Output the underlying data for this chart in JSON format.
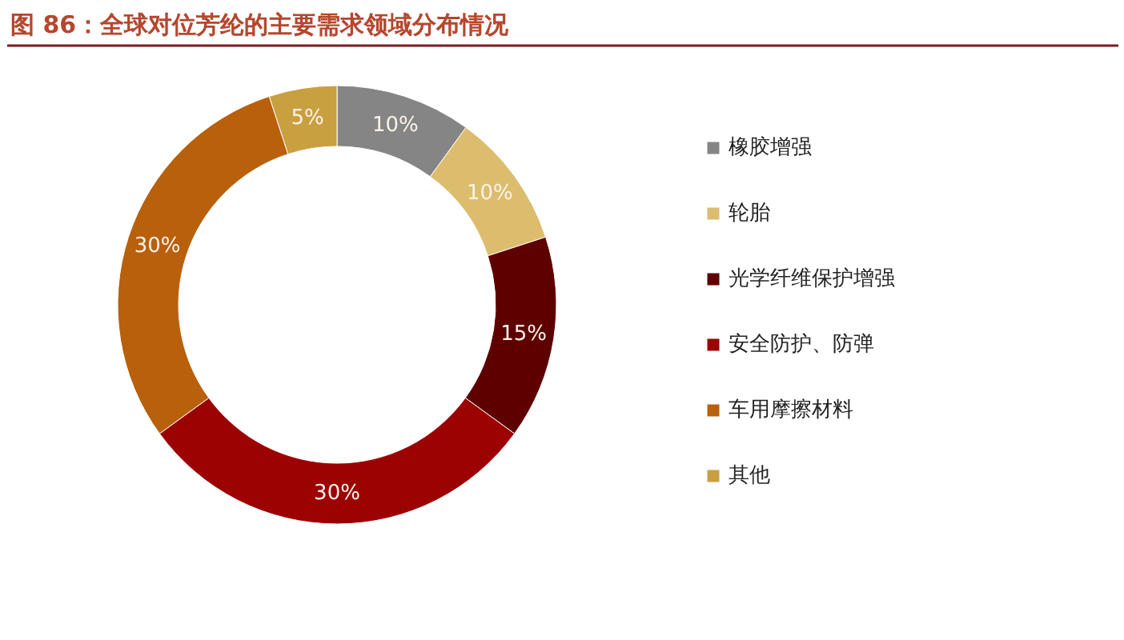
{
  "chart_data": {
    "type": "donut",
    "title": "图 86：全球对位芳纶的主要需求领域分布情况",
    "categories": [
      "橡胶增强",
      "轮胎",
      "光学纤维保护增强",
      "安全防护、防弹",
      "车用摩擦材料",
      "其他"
    ],
    "values": [
      10,
      10,
      15,
      30,
      30,
      5
    ],
    "colors": [
      "#858585",
      "#dcbd6e",
      "#5e0000",
      "#9c0202",
      "#b8600c",
      "#c9a040"
    ],
    "value_labels": [
      "10%",
      "10%",
      "15%",
      "30%",
      "30%",
      "5%"
    ],
    "legend": "right"
  }
}
